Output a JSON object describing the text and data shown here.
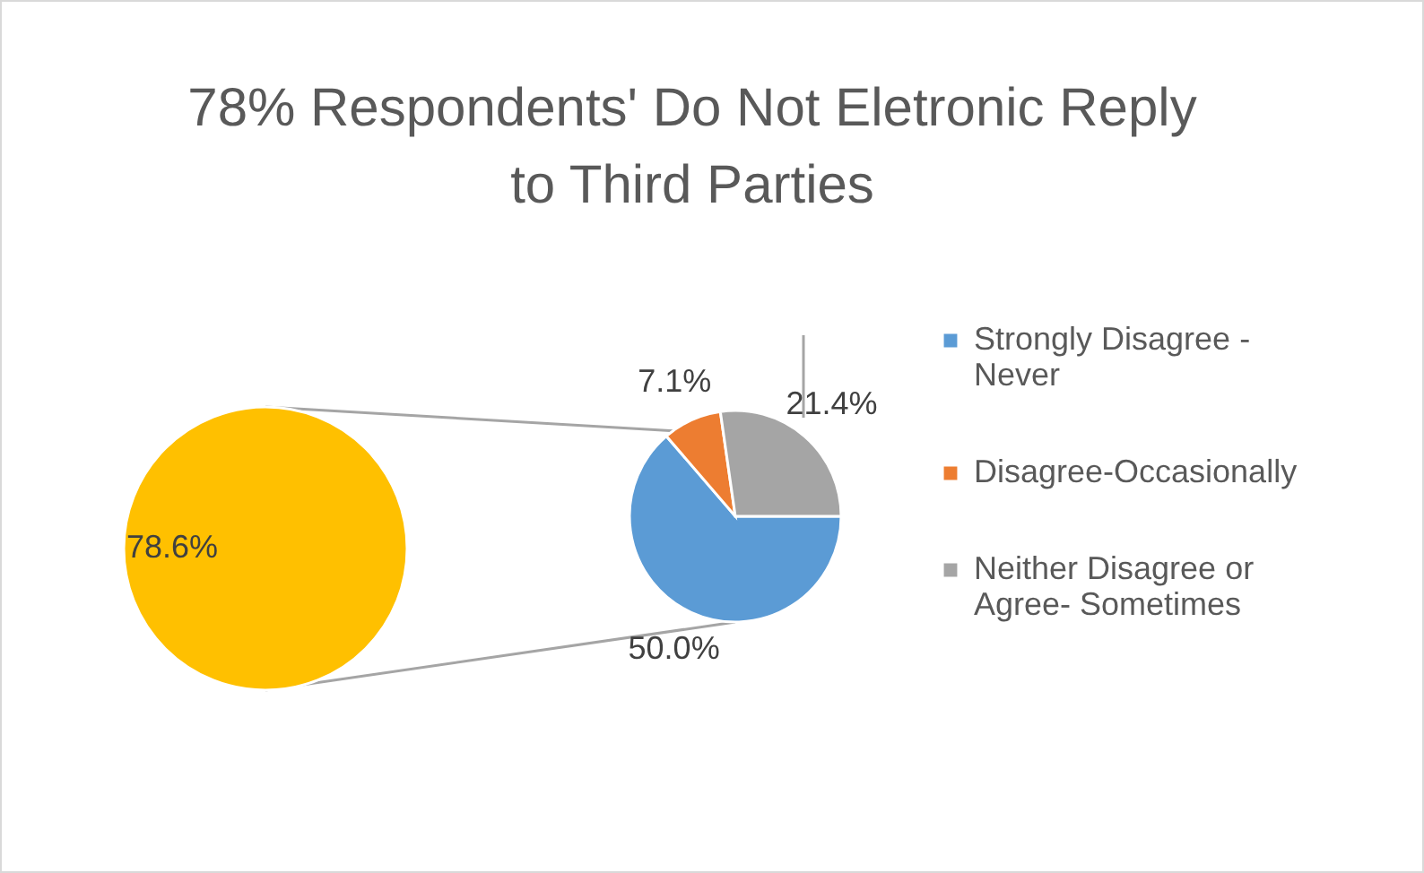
{
  "chart_data": [
    {
      "type": "pie",
      "title": "78% Respondents' Do Not Eletronic Reply to Third Parties",
      "categories": [
        null
      ],
      "values": [
        78.6
      ],
      "colors": [
        "#ffc000"
      ],
      "value_labels": [
        "78.6%"
      ]
    },
    {
      "type": "pie",
      "categories": [
        "Strongly Disagree - Never",
        "Disagree-Occasionally",
        "Neither Disagree or Agree- Sometimes"
      ],
      "values": [
        50.0,
        7.1,
        21.4
      ],
      "colors": [
        "#5b9bd5",
        "#ed7d31",
        "#a5a5a5"
      ],
      "value_labels": [
        "50.0%",
        "7.1%",
        "21.4%"
      ],
      "legend": "right"
    }
  ]
}
